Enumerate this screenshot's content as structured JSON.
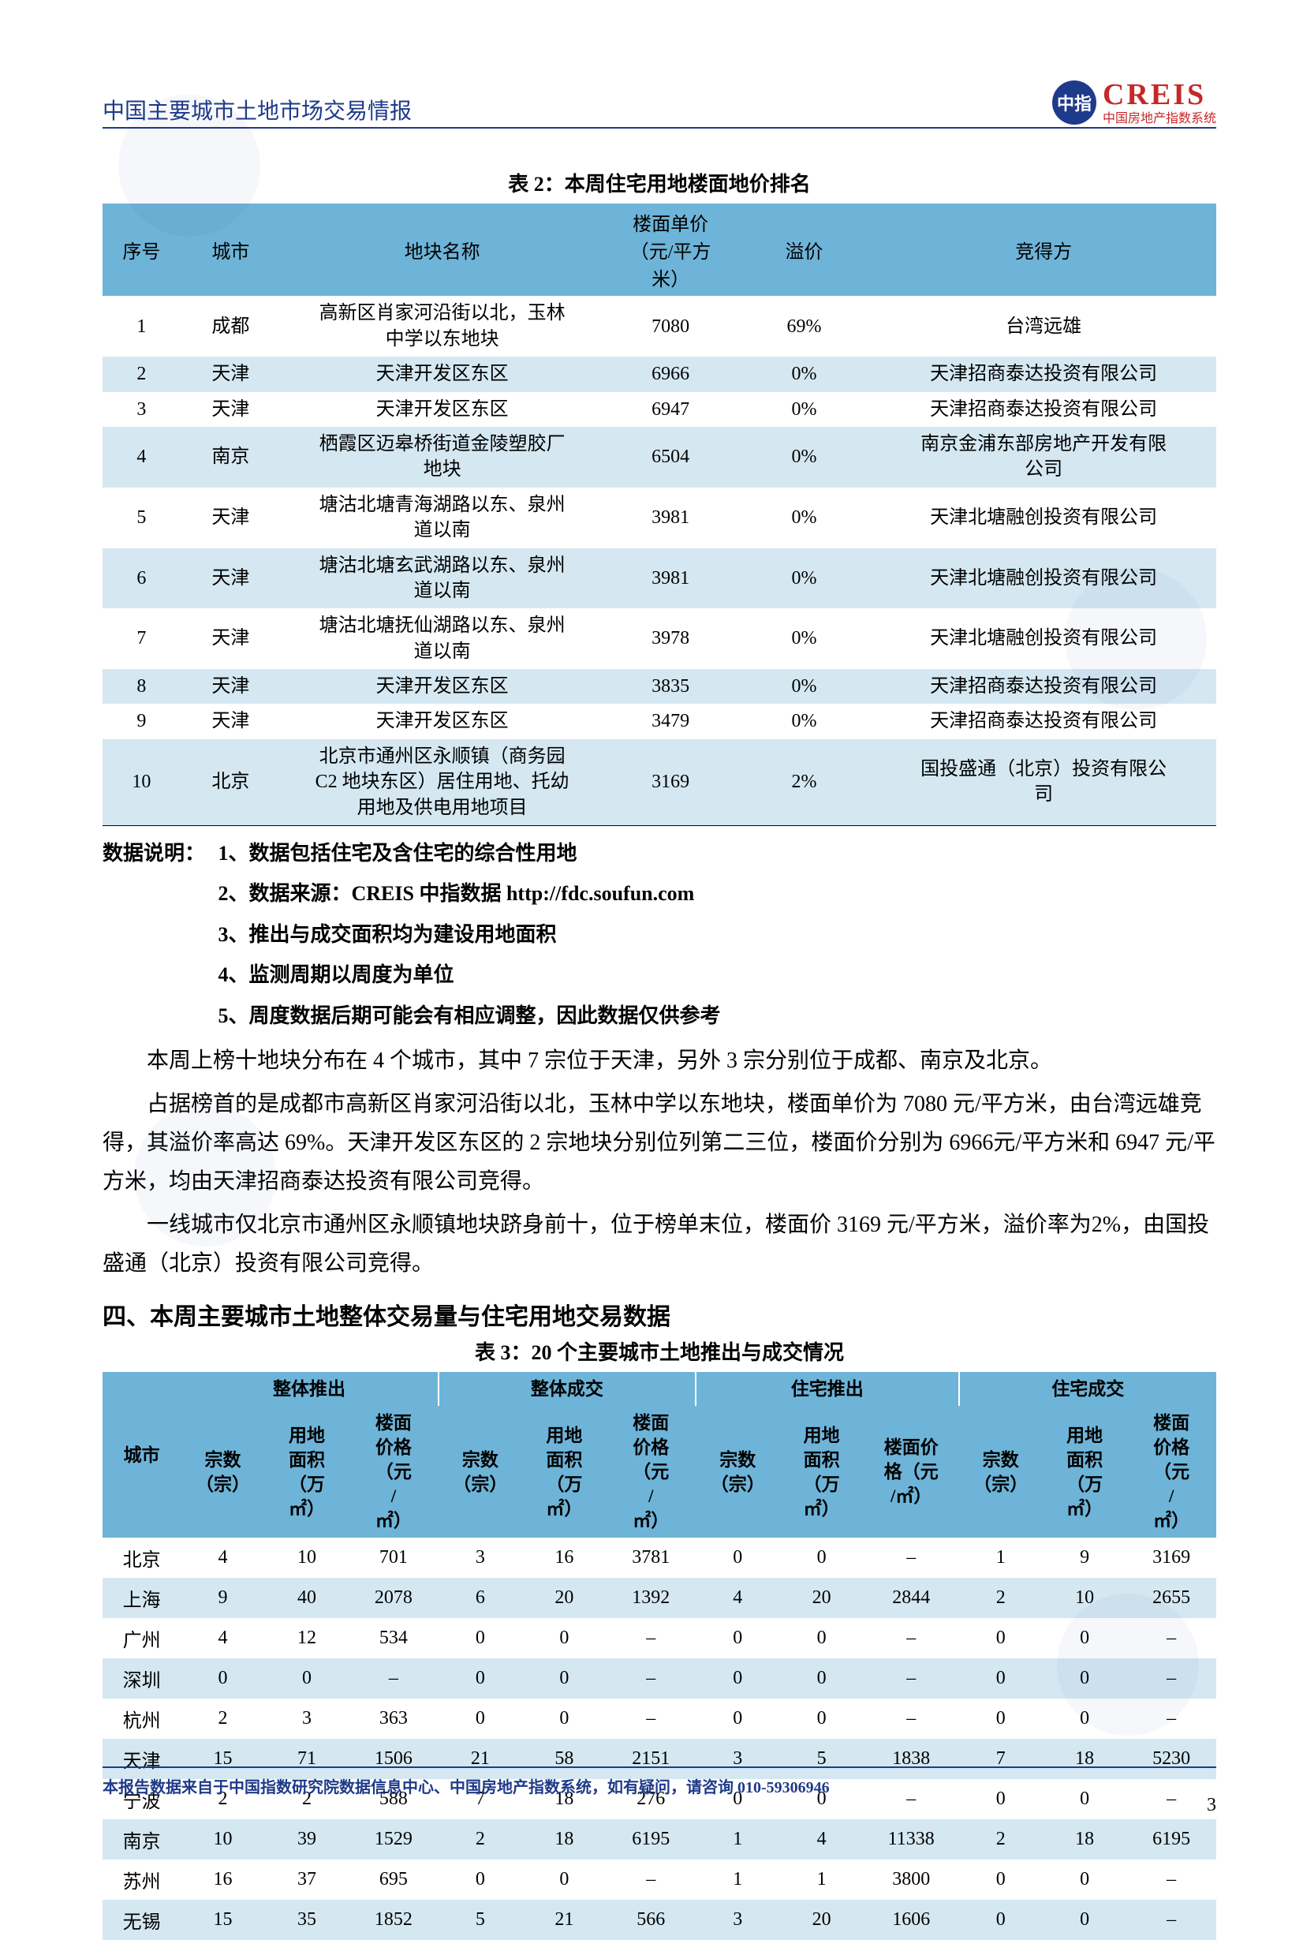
{
  "header": {
    "doc_title": "中国主要城市土地市场交易情报",
    "logo_char": "中指",
    "logo_main": "CREIS",
    "logo_sub": "中国房地产指数系统"
  },
  "table2": {
    "caption": "表 2：本周住宅用地楼面地价排名",
    "headers": {
      "c1": "序号",
      "c2": "城市",
      "c3": "地块名称",
      "c4_l1": "楼面单价",
      "c4_l2": "（元/平方",
      "c4_l3": "米）",
      "c5": "溢价",
      "c6": "竞得方"
    },
    "rows": [
      {
        "n": "1",
        "city": "成都",
        "name": "高新区肖家河沿街以北，玉林\n中学以东地块",
        "price": "7080",
        "prem": "69%",
        "buyer": "台湾远雄"
      },
      {
        "n": "2",
        "city": "天津",
        "name": "天津开发区东区",
        "price": "6966",
        "prem": "0%",
        "buyer": "天津招商泰达投资有限公司"
      },
      {
        "n": "3",
        "city": "天津",
        "name": "天津开发区东区",
        "price": "6947",
        "prem": "0%",
        "buyer": "天津招商泰达投资有限公司"
      },
      {
        "n": "4",
        "city": "南京",
        "name": "栖霞区迈皋桥街道金陵塑胶厂\n地块",
        "price": "6504",
        "prem": "0%",
        "buyer": "南京金浦东部房地产开发有限\n公司"
      },
      {
        "n": "5",
        "city": "天津",
        "name": "塘沽北塘青海湖路以东、泉州\n道以南",
        "price": "3981",
        "prem": "0%",
        "buyer": "天津北塘融创投资有限公司"
      },
      {
        "n": "6",
        "city": "天津",
        "name": "塘沽北塘玄武湖路以东、泉州\n道以南",
        "price": "3981",
        "prem": "0%",
        "buyer": "天津北塘融创投资有限公司"
      },
      {
        "n": "7",
        "city": "天津",
        "name": "塘沽北塘抚仙湖路以东、泉州\n道以南",
        "price": "3978",
        "prem": "0%",
        "buyer": "天津北塘融创投资有限公司"
      },
      {
        "n": "8",
        "city": "天津",
        "name": "天津开发区东区",
        "price": "3835",
        "prem": "0%",
        "buyer": "天津招商泰达投资有限公司"
      },
      {
        "n": "9",
        "city": "天津",
        "name": "天津开发区东区",
        "price": "3479",
        "prem": "0%",
        "buyer": "天津招商泰达投资有限公司"
      },
      {
        "n": "10",
        "city": "北京",
        "name": "北京市通州区永顺镇（商务园\nC2 地块东区）居住用地、托幼\n用地及供电用地项目",
        "price": "3169",
        "prem": "2%",
        "buyer": "国投盛通（北京）投资有限公\n司"
      }
    ]
  },
  "notes": {
    "label": "数据说明：",
    "items": [
      "1、数据包括住宅及含住宅的综合性用地",
      "2、数据来源：CREIS 中指数据 http://fdc.soufun.com",
      "3、推出与成交面积均为建设用地面积",
      "4、监测周期以周度为单位",
      "5、周度数据后期可能会有相应调整，因此数据仅供参考"
    ]
  },
  "paragraphs": {
    "p1": "本周上榜十地块分布在 4 个城市，其中 7 宗位于天津，另外 3 宗分别位于成都、南京及北京。",
    "p2": "占据榜首的是成都市高新区肖家河沿街以北，玉林中学以东地块，楼面单价为 7080 元/平方米，由台湾远雄竞得，其溢价率高达 69%。天津开发区东区的 2 宗地块分别位列第二三位，楼面价分别为 6966元/平方米和 6947 元/平方米，均由天津招商泰达投资有限公司竞得。",
    "p3": "一线城市仅北京市通州区永顺镇地块跻身前十，位于榜单末位，楼面价 3169 元/平方米，溢价率为2%，由国投盛通（北京）投资有限公司竞得。"
  },
  "section4": "四、本周主要城市土地整体交易量与住宅用地交易数据",
  "table3": {
    "caption": "表 3：20 个主要城市土地推出与成交情况",
    "groups": {
      "g0": "城市",
      "g1": "整体推出",
      "g2": "整体成交",
      "g3": "住宅推出",
      "g4": "住宅成交"
    },
    "subheaders": {
      "h_cnt": "宗数\n（宗）",
      "h_area": "用地\n面积\n（万\n㎡）",
      "h_price": "楼面\n价格\n（元\n/\n㎡）",
      "h_price2": "楼面价\n格（元\n/㎡）"
    },
    "rows": [
      {
        "city": "北京",
        "a1": "4",
        "a2": "10",
        "a3": "701",
        "b1": "3",
        "b2": "16",
        "b3": "3781",
        "c1": "0",
        "c2": "0",
        "c3": "–",
        "d1": "1",
        "d2": "9",
        "d3": "3169"
      },
      {
        "city": "上海",
        "a1": "9",
        "a2": "40",
        "a3": "2078",
        "b1": "6",
        "b2": "20",
        "b3": "1392",
        "c1": "4",
        "c2": "20",
        "c3": "2844",
        "d1": "2",
        "d2": "10",
        "d3": "2655"
      },
      {
        "city": "广州",
        "a1": "4",
        "a2": "12",
        "a3": "534",
        "b1": "0",
        "b2": "0",
        "b3": "–",
        "c1": "0",
        "c2": "0",
        "c3": "–",
        "d1": "0",
        "d2": "0",
        "d3": "–"
      },
      {
        "city": "深圳",
        "a1": "0",
        "a2": "0",
        "a3": "–",
        "b1": "0",
        "b2": "0",
        "b3": "–",
        "c1": "0",
        "c2": "0",
        "c3": "–",
        "d1": "0",
        "d2": "0",
        "d3": "–"
      },
      {
        "city": "杭州",
        "a1": "2",
        "a2": "3",
        "a3": "363",
        "b1": "0",
        "b2": "0",
        "b3": "–",
        "c1": "0",
        "c2": "0",
        "c3": "–",
        "d1": "0",
        "d2": "0",
        "d3": "–"
      },
      {
        "city": "天津",
        "a1": "15",
        "a2": "71",
        "a3": "1506",
        "b1": "21",
        "b2": "58",
        "b3": "2151",
        "c1": "3",
        "c2": "5",
        "c3": "1838",
        "d1": "7",
        "d2": "18",
        "d3": "5230"
      },
      {
        "city": "宁波",
        "a1": "2",
        "a2": "2",
        "a3": "588",
        "b1": "7",
        "b2": "18",
        "b3": "276",
        "c1": "0",
        "c2": "0",
        "c3": "–",
        "d1": "0",
        "d2": "0",
        "d3": "–"
      },
      {
        "city": "南京",
        "a1": "10",
        "a2": "39",
        "a3": "1529",
        "b1": "2",
        "b2": "18",
        "b3": "6195",
        "c1": "1",
        "c2": "4",
        "c3": "11338",
        "d1": "2",
        "d2": "18",
        "d3": "6195"
      },
      {
        "city": "苏州",
        "a1": "16",
        "a2": "37",
        "a3": "695",
        "b1": "0",
        "b2": "0",
        "b3": "–",
        "c1": "1",
        "c2": "1",
        "c3": "3800",
        "d1": "0",
        "d2": "0",
        "d3": "–"
      },
      {
        "city": "无锡",
        "a1": "15",
        "a2": "35",
        "a3": "1852",
        "b1": "5",
        "b2": "21",
        "b3": "566",
        "c1": "3",
        "c2": "20",
        "c3": "1606",
        "d1": "0",
        "d2": "0",
        "d3": "–"
      }
    ]
  },
  "footer": {
    "text": "本报告数据来自于中国指数研究院数据信息中心、中国房地产指数系统，如有疑问，请咨询 010-59306946",
    "page": "3"
  }
}
